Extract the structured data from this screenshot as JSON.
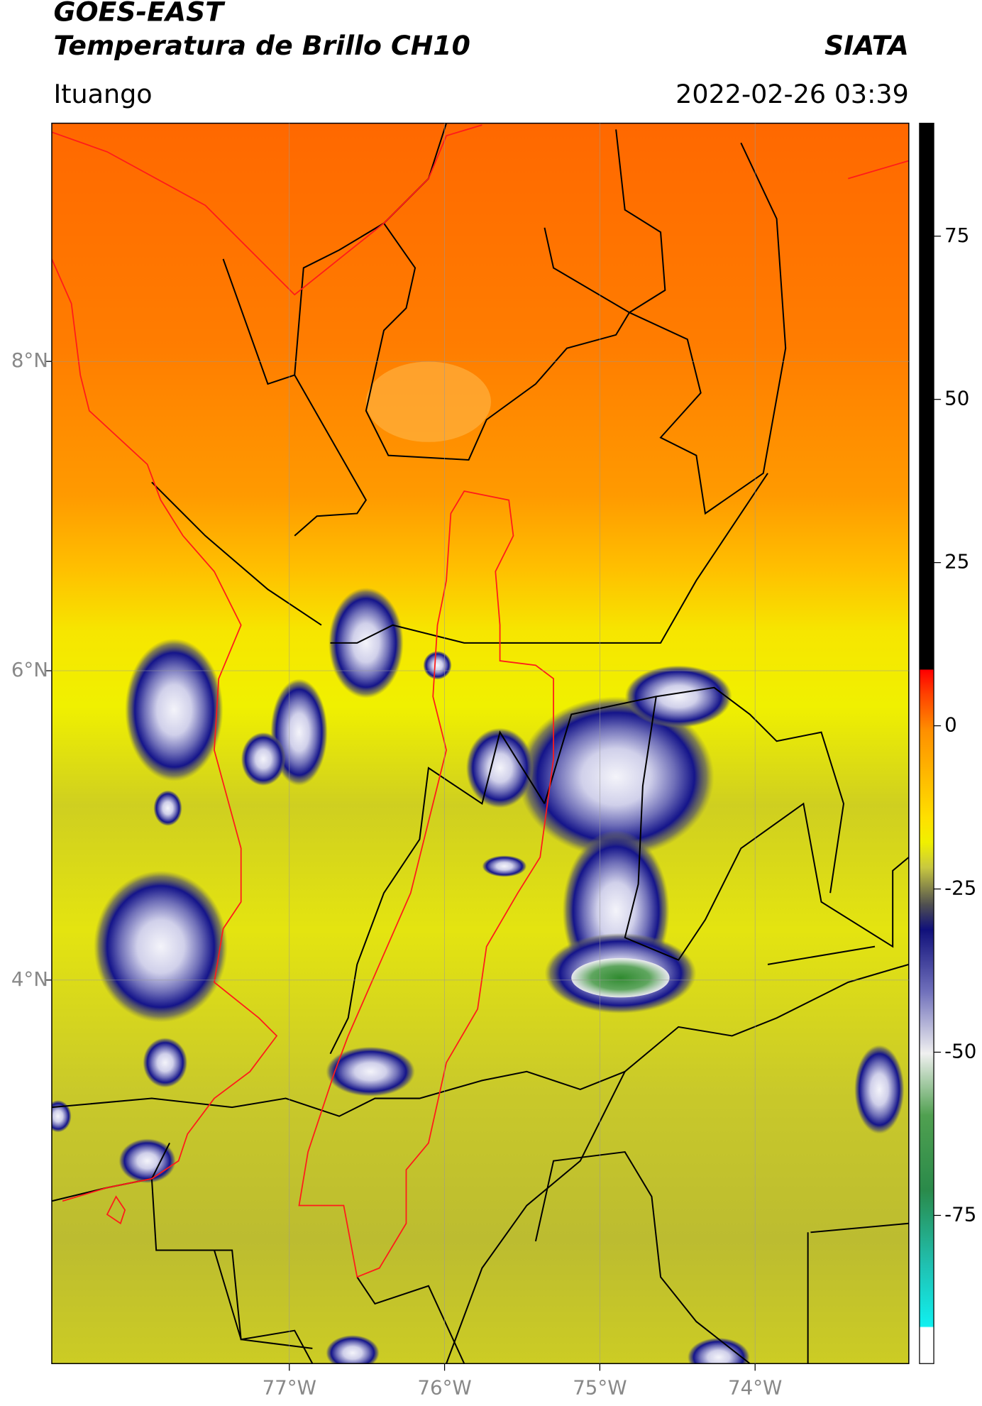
{
  "header": {
    "title": "GOES-EAST",
    "subtitle": "Temperatura de Brillo CH10",
    "source": "SIATA",
    "location": "Ituango",
    "datetime": "2022-02-26 03:39"
  },
  "map": {
    "lonlim": [
      -78.53,
      -73.01
    ],
    "latlim": [
      1.52,
      9.54
    ],
    "xticks": [
      {
        "value": -77,
        "label": "77°W"
      },
      {
        "value": -76,
        "label": "76°W"
      },
      {
        "value": -75,
        "label": "75°W"
      },
      {
        "value": -74,
        "label": "74°W"
      }
    ],
    "yticks": [
      {
        "value": 8,
        "label": "8°N"
      },
      {
        "value": 6,
        "label": "6°N"
      },
      {
        "value": 4,
        "label": "4°N"
      }
    ],
    "grid": true
  },
  "colorbar": {
    "lim": [
      -97.7,
      92.3
    ],
    "ticks": [
      75,
      50,
      25,
      0,
      -25,
      -50,
      -75
    ]
  }
}
